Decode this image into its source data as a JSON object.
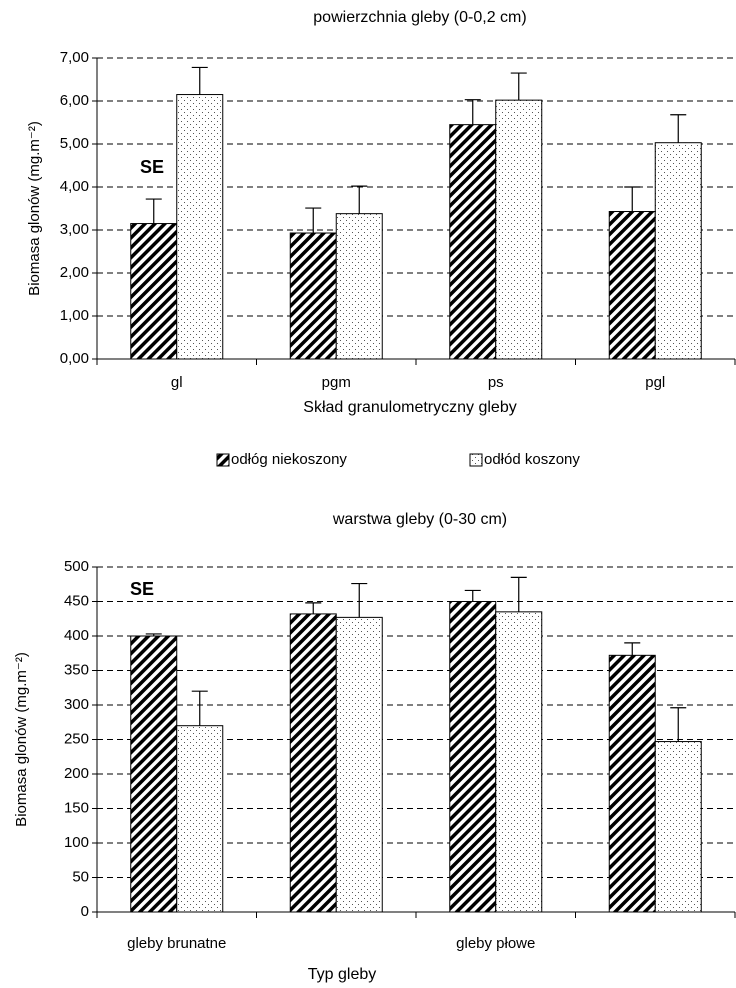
{
  "chart_data": [
    {
      "type": "bar",
      "title": "powierzchnia gleby (0-0,2 cm)",
      "ylabel": "Biomasa glonów (mg.m⁻²)",
      "xlabel": "Skład granulometryczny gleby",
      "annotation": "SE",
      "categories": [
        "gl",
        "pgm",
        "ps",
        "pgl"
      ],
      "series": [
        {
          "name": "odłóg niekoszony",
          "color": "#000000",
          "pattern": "hatch",
          "values": [
            3.15,
            2.93,
            5.45,
            3.43
          ],
          "errors": [
            0.57,
            0.58,
            0.58,
            0.57
          ]
        },
        {
          "name": "odłód koszony",
          "color": "#000000",
          "pattern": "dots",
          "values": [
            6.15,
            3.38,
            6.02,
            5.03
          ],
          "errors": [
            0.63,
            0.64,
            0.63,
            0.65
          ]
        }
      ],
      "ylim": [
        0,
        7
      ],
      "yticks": [
        {
          "value": 0,
          "label": "0,00"
        },
        {
          "value": 1,
          "label": "1,00"
        },
        {
          "value": 2,
          "label": "2,00"
        },
        {
          "value": 3,
          "label": "3,00"
        },
        {
          "value": 4,
          "label": "4,00"
        },
        {
          "value": 5,
          "label": "5,00"
        },
        {
          "value": 6,
          "label": "6,00"
        },
        {
          "value": 7,
          "label": "7,00"
        }
      ],
      "grid": true,
      "legend": "bottom"
    },
    {
      "type": "bar",
      "title": "warstwa gleby (0-30 cm)",
      "ylabel": "Biomasa glonów  (mg.m⁻²)",
      "xlabel": "Typ gleby",
      "annotation": "SE",
      "categories": [
        "gleby brunatne",
        null,
        "gleby płowe",
        null
      ],
      "series": [
        {
          "name": "odłóg niekoszony",
          "color": "#000000",
          "pattern": "hatch",
          "values": [
            400,
            432,
            450,
            372
          ],
          "errors": [
            3,
            16,
            16,
            18
          ]
        },
        {
          "name": "odłód koszony",
          "color": "#000000",
          "pattern": "dots",
          "values": [
            270,
            427,
            435,
            247
          ],
          "errors": [
            50,
            49,
            50,
            49
          ]
        }
      ],
      "ylim": [
        0,
        500
      ],
      "yticks": [
        0,
        50,
        100,
        150,
        200,
        250,
        300,
        350,
        400,
        450,
        500
      ],
      "grid": true
    }
  ]
}
